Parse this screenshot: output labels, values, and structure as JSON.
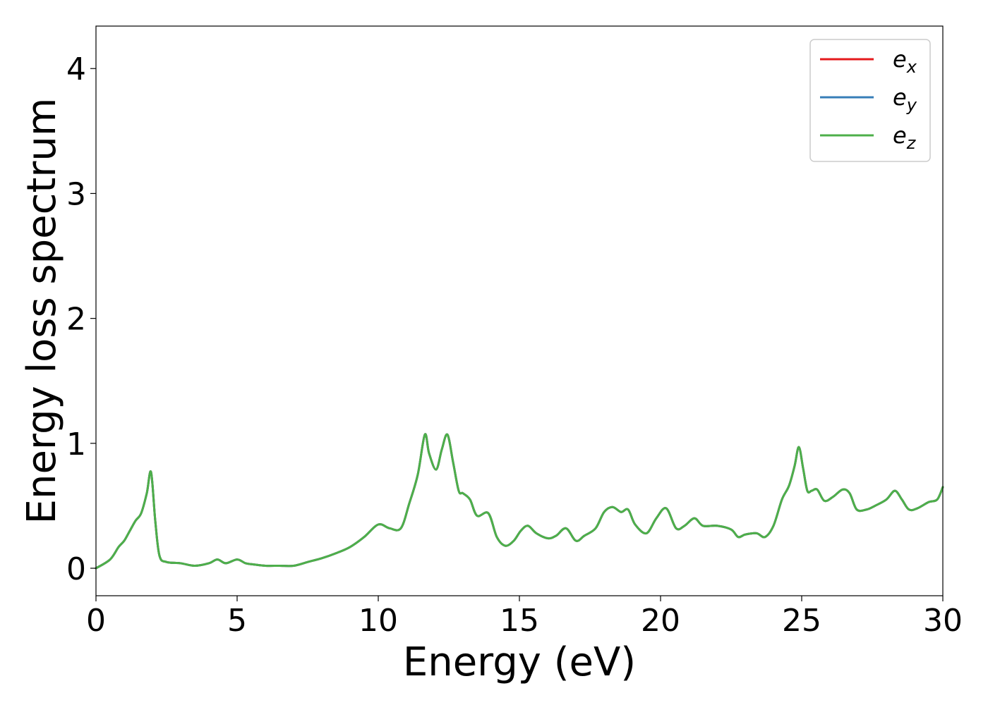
{
  "chart_data": {
    "type": "line",
    "xlabel": "Energy (eV)",
    "ylabel": "Energy loss spectrum",
    "xlim": [
      0,
      30
    ],
    "ylim": [
      -0.22,
      4.34
    ],
    "xticks": [
      0,
      5,
      10,
      15,
      20,
      25,
      30
    ],
    "yticks": [
      0,
      1,
      2,
      3,
      4
    ],
    "xtick_labels": [
      "0",
      "5",
      "10",
      "15",
      "20",
      "25",
      "30"
    ],
    "ytick_labels": [
      "0",
      "1",
      "2",
      "3",
      "4"
    ],
    "grid": false,
    "legend_position": "top-right",
    "x": [
      0,
      0.5,
      0.8,
      1.0,
      1.2,
      1.4,
      1.6,
      1.8,
      1.95,
      2.1,
      2.25,
      2.5,
      3.0,
      3.5,
      4.0,
      4.3,
      4.6,
      5.0,
      5.3,
      5.6,
      6.0,
      6.5,
      7.0,
      7.5,
      8.0,
      8.5,
      9.0,
      9.5,
      10.0,
      10.4,
      10.8,
      11.1,
      11.4,
      11.65,
      11.8,
      12.05,
      12.25,
      12.45,
      12.65,
      12.85,
      13.0,
      13.25,
      13.5,
      13.9,
      14.2,
      14.5,
      14.8,
      15.05,
      15.3,
      15.6,
      16.0,
      16.3,
      16.65,
      17.0,
      17.3,
      17.7,
      18.0,
      18.3,
      18.6,
      18.85,
      19.1,
      19.5,
      19.85,
      20.2,
      20.55,
      20.85,
      21.2,
      21.5,
      22.0,
      22.5,
      22.75,
      23.0,
      23.4,
      23.7,
      24.0,
      24.3,
      24.55,
      24.75,
      24.9,
      25.05,
      25.2,
      25.35,
      25.55,
      25.8,
      26.1,
      26.45,
      26.7,
      26.95,
      27.3,
      27.6,
      28.0,
      28.3,
      28.55,
      28.8,
      29.1,
      29.5,
      29.8,
      30.0
    ],
    "series": [
      {
        "name": "e_x",
        "color": "#e41a1c",
        "values": [
          0.0,
          0.07,
          0.17,
          0.22,
          0.3,
          0.38,
          0.44,
          0.6,
          0.77,
          0.38,
          0.1,
          0.05,
          0.04,
          0.02,
          0.04,
          0.07,
          0.04,
          0.07,
          0.04,
          0.03,
          0.02,
          0.02,
          0.02,
          0.05,
          0.08,
          0.12,
          0.17,
          0.25,
          0.35,
          0.32,
          0.32,
          0.52,
          0.75,
          1.07,
          0.92,
          0.79,
          0.95,
          1.07,
          0.85,
          0.62,
          0.6,
          0.55,
          0.42,
          0.44,
          0.25,
          0.18,
          0.22,
          0.3,
          0.34,
          0.28,
          0.24,
          0.26,
          0.32,
          0.22,
          0.26,
          0.32,
          0.45,
          0.49,
          0.45,
          0.47,
          0.35,
          0.28,
          0.4,
          0.48,
          0.32,
          0.34,
          0.4,
          0.34,
          0.34,
          0.31,
          0.25,
          0.27,
          0.28,
          0.25,
          0.34,
          0.55,
          0.66,
          0.82,
          0.97,
          0.8,
          0.62,
          0.62,
          0.63,
          0.54,
          0.57,
          0.63,
          0.6,
          0.47,
          0.47,
          0.5,
          0.55,
          0.62,
          0.55,
          0.47,
          0.48,
          0.53,
          0.55,
          0.65
        ]
      },
      {
        "name": "e_y",
        "color": "#377eb8",
        "values": [
          0.0,
          0.07,
          0.17,
          0.22,
          0.3,
          0.38,
          0.44,
          0.6,
          0.77,
          0.38,
          0.1,
          0.05,
          0.04,
          0.02,
          0.04,
          0.07,
          0.04,
          0.07,
          0.04,
          0.03,
          0.02,
          0.02,
          0.02,
          0.05,
          0.08,
          0.12,
          0.17,
          0.25,
          0.35,
          0.32,
          0.32,
          0.52,
          0.75,
          1.07,
          0.92,
          0.79,
          0.95,
          1.07,
          0.85,
          0.62,
          0.6,
          0.55,
          0.42,
          0.44,
          0.25,
          0.18,
          0.22,
          0.3,
          0.34,
          0.28,
          0.24,
          0.26,
          0.32,
          0.22,
          0.26,
          0.32,
          0.45,
          0.49,
          0.45,
          0.47,
          0.35,
          0.28,
          0.4,
          0.48,
          0.32,
          0.34,
          0.4,
          0.34,
          0.34,
          0.31,
          0.25,
          0.27,
          0.28,
          0.25,
          0.34,
          0.55,
          0.66,
          0.82,
          0.97,
          0.8,
          0.62,
          0.62,
          0.63,
          0.54,
          0.57,
          0.63,
          0.6,
          0.47,
          0.47,
          0.5,
          0.55,
          0.62,
          0.55,
          0.47,
          0.48,
          0.53,
          0.55,
          0.65
        ]
      },
      {
        "name": "e_z",
        "color": "#4daf4a",
        "values": [
          0.0,
          0.07,
          0.17,
          0.22,
          0.3,
          0.38,
          0.44,
          0.6,
          0.77,
          0.38,
          0.1,
          0.05,
          0.04,
          0.02,
          0.04,
          0.07,
          0.04,
          0.07,
          0.04,
          0.03,
          0.02,
          0.02,
          0.02,
          0.05,
          0.08,
          0.12,
          0.17,
          0.25,
          0.35,
          0.32,
          0.32,
          0.52,
          0.75,
          1.07,
          0.92,
          0.79,
          0.95,
          1.07,
          0.85,
          0.62,
          0.6,
          0.55,
          0.42,
          0.44,
          0.25,
          0.18,
          0.22,
          0.3,
          0.34,
          0.28,
          0.24,
          0.26,
          0.32,
          0.22,
          0.26,
          0.32,
          0.45,
          0.49,
          0.45,
          0.47,
          0.35,
          0.28,
          0.4,
          0.48,
          0.32,
          0.34,
          0.4,
          0.34,
          0.34,
          0.31,
          0.25,
          0.27,
          0.28,
          0.25,
          0.34,
          0.55,
          0.66,
          0.82,
          0.97,
          0.8,
          0.62,
          0.62,
          0.63,
          0.54,
          0.57,
          0.63,
          0.6,
          0.47,
          0.47,
          0.5,
          0.55,
          0.62,
          0.55,
          0.47,
          0.48,
          0.53,
          0.55,
          0.65
        ]
      }
    ],
    "legend": [
      {
        "base": "e",
        "sub": "x",
        "color": "#e41a1c"
      },
      {
        "base": "e",
        "sub": "y",
        "color": "#377eb8"
      },
      {
        "base": "e",
        "sub": "z",
        "color": "#4daf4a"
      }
    ]
  }
}
